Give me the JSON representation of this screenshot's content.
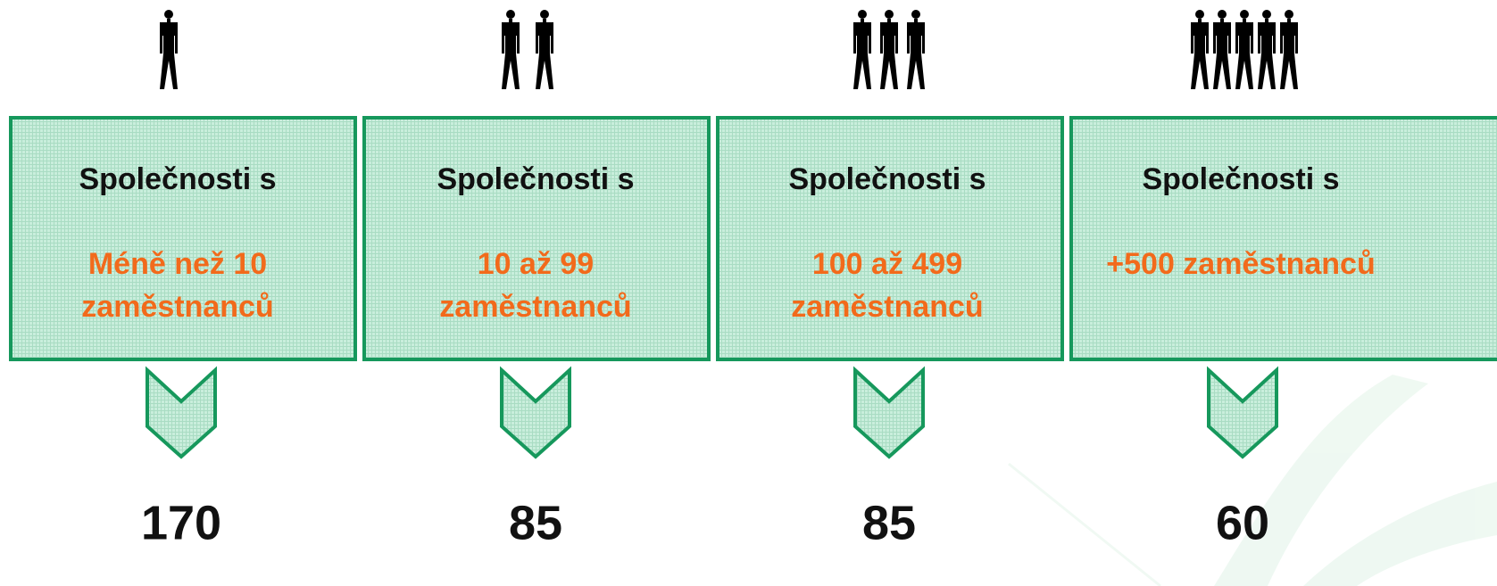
{
  "columns": [
    {
      "heading": "Společnosti s",
      "range": [
        "Méně než 10",
        "zaměstnanců"
      ],
      "count": 170
    },
    {
      "heading": "Společnosti s",
      "range": [
        "10 až 99",
        "zaměstnanců"
      ],
      "count": 85
    },
    {
      "heading": "Společnosti s",
      "range": [
        "100 až 499",
        "zaměstnanců"
      ],
      "count": 85
    },
    {
      "heading": "Společnosti s",
      "range": [
        "+500 zaměstnanců"
      ],
      "count": 60
    }
  ]
}
